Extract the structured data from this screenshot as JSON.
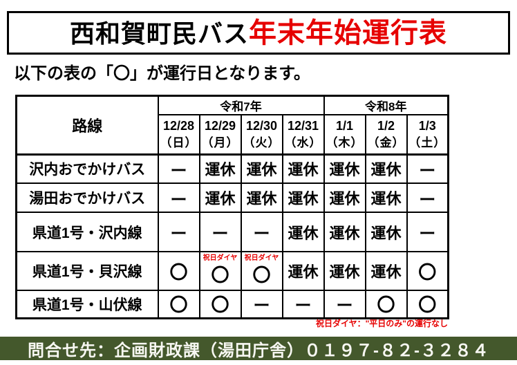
{
  "title": {
    "prefix": "西和賀町民バス",
    "highlight": "年末年始運行表"
  },
  "subtitle": "以下の表の「〇」が運行日となります。",
  "table": {
    "route_header": "路線",
    "year_groups": [
      {
        "label": "令和7年",
        "span": 4
      },
      {
        "label": "令和8年",
        "span": 3
      }
    ],
    "dates": [
      {
        "date": "12/28",
        "day": "（日）"
      },
      {
        "date": "12/29",
        "day": "（月）"
      },
      {
        "date": "12/30",
        "day": "（火）"
      },
      {
        "date": "12/31",
        "day": "（水）"
      },
      {
        "date": "1/1",
        "day": "（木）"
      },
      {
        "date": "1/2",
        "day": "（金）"
      },
      {
        "date": "1/3",
        "day": "（土）"
      }
    ],
    "rows": [
      {
        "route": "沢内おでかけバス",
        "cells": [
          "ー",
          "運休",
          "運休",
          "運休",
          "運休",
          "運休",
          "ー"
        ]
      },
      {
        "route": "湯田おでかけバス",
        "cells": [
          "ー",
          "運休",
          "運休",
          "運休",
          "運休",
          "運休",
          "ー"
        ]
      },
      {
        "route": "県道1号・沢内線",
        "cells": [
          "ー",
          "ー",
          "ー",
          "運休",
          "運休",
          "運休",
          "ー"
        ]
      },
      {
        "route": "県道1号・貝沢線",
        "cells": [
          "〇",
          "〇",
          "〇",
          "運休",
          "運休",
          "運休",
          "〇"
        ],
        "cell_notes": {
          "1": "祝日ダイヤ",
          "2": "祝日ダイヤ"
        }
      },
      {
        "route": "県道1号・山伏線",
        "cells": [
          "〇",
          "〇",
          "ー",
          "ー",
          "ー",
          "〇",
          "〇"
        ]
      }
    ],
    "footnote": "祝日ダイヤ：\"平日のみ\"の運行なし"
  },
  "footer": {
    "text": "問合せ先：企画財政課（湯田庁舎）０１９７-８２-３２８４"
  },
  "colors": {
    "accent_red": "#e60000",
    "footer_green": "#44582c",
    "border_black": "#000000"
  }
}
